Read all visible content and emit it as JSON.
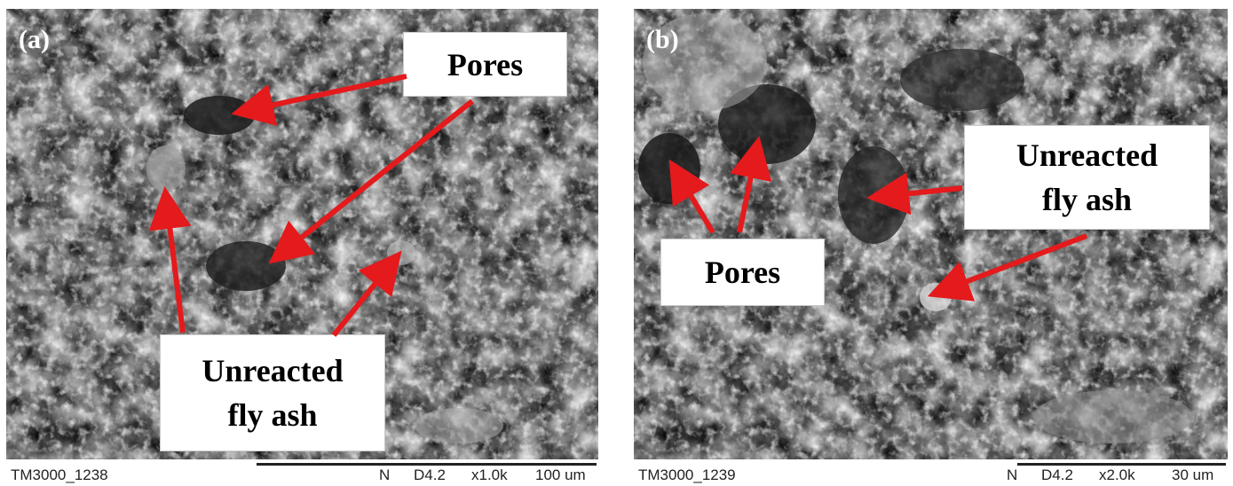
{
  "panels": [
    {
      "label": "(a)",
      "callouts": {
        "pores": "Pores",
        "unreacted_line1": "Unreacted",
        "unreacted_line2": "fly ash"
      },
      "footer": {
        "image_id": "TM3000_1238",
        "mode": "N",
        "detector": "D4.2",
        "magnification": "x1.0k",
        "scale": "100 um"
      }
    },
    {
      "label": "(b)",
      "callouts": {
        "pores": "Pores",
        "unreacted_line1": "Unreacted",
        "unreacted_line2": "fly ash"
      },
      "footer": {
        "image_id": "TM3000_1239",
        "mode": "N",
        "detector": "D4.2",
        "magnification": "x2.0k",
        "scale": "30 um"
      }
    }
  ],
  "colors": {
    "arrow": "#e41a1c",
    "micrograph_base": "#6e6e6e",
    "callout_bg": "#ffffff"
  }
}
